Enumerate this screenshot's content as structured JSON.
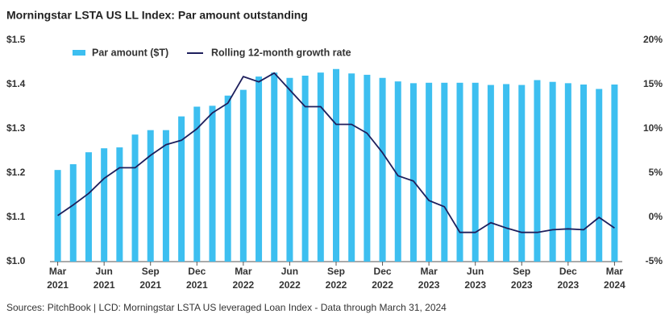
{
  "chart_data": {
    "type": "bar_line",
    "title": "Morningstar LSTA US LL Index: Par amount outstanding",
    "source": "Sources: PitchBook | LCD: Morningstar LSTA US leveraged Loan Index - Data through March 31, 2024",
    "categories": [
      "Mar 2021",
      null,
      null,
      "Jun 2021",
      null,
      null,
      "Sep 2021",
      null,
      null,
      "Dec 2021",
      null,
      null,
      "Mar 2022",
      null,
      null,
      "Jun 2022",
      null,
      null,
      "Sep 2022",
      null,
      null,
      "Dec 2022",
      null,
      null,
      "Mar 2023",
      null,
      null,
      "Jun 2023",
      null,
      null,
      "Sep 2023",
      null,
      null,
      "Dec 2023",
      null,
      null,
      "Mar 2024"
    ],
    "series": [
      {
        "name": "Par amount ($T)",
        "color": "#3dbff0",
        "kind": "bar",
        "values": [
          1.207,
          1.22,
          1.247,
          1.256,
          1.258,
          1.287,
          1.297,
          1.297,
          1.328,
          1.35,
          1.352,
          1.375,
          1.388,
          1.418,
          1.427,
          1.415,
          1.42,
          1.427,
          1.435,
          1.425,
          1.422,
          1.415,
          1.407,
          1.403,
          1.404,
          1.404,
          1.404,
          1.404,
          1.399,
          1.401,
          1.399,
          1.41,
          1.406,
          1.403,
          1.4,
          1.39,
          1.4
        ]
      },
      {
        "name": "Rolling 12-month growth rate",
        "color": "#1e1f5c",
        "kind": "line",
        "axis": "y2",
        "values": [
          0.2,
          1.4,
          2.7,
          4.4,
          5.6,
          5.6,
          7.0,
          8.2,
          8.7,
          10.0,
          11.8,
          12.9,
          15.9,
          15.3,
          16.3,
          14.4,
          12.5,
          12.5,
          10.5,
          10.5,
          9.5,
          7.3,
          4.7,
          4.1,
          1.9,
          1.2,
          -1.7,
          -1.7,
          -0.6,
          -1.2,
          -1.7,
          -1.7,
          -1.4,
          -1.3,
          -1.4,
          0.0,
          -1.2
        ]
      }
    ],
    "ylim": [
      1.0,
      1.5
    ],
    "yticks": [
      {
        "value": 1.0,
        "label": "$1.0"
      },
      {
        "value": 1.1,
        "label": "$1.1"
      },
      {
        "value": 1.2,
        "label": "$1.2"
      },
      {
        "value": 1.3,
        "label": "$1.3"
      },
      {
        "value": 1.4,
        "label": "$1.4"
      },
      {
        "value": 1.5,
        "label": "$1.5"
      }
    ],
    "y2lim": [
      -5,
      20
    ],
    "y2ticks": [
      {
        "value": -5,
        "label": "-5%"
      },
      {
        "value": 0,
        "label": "0%"
      },
      {
        "value": 5,
        "label": "5%"
      },
      {
        "value": 10,
        "label": "10%"
      },
      {
        "value": 15,
        "label": "15%"
      },
      {
        "value": 20,
        "label": "20%"
      }
    ],
    "grid": false
  }
}
